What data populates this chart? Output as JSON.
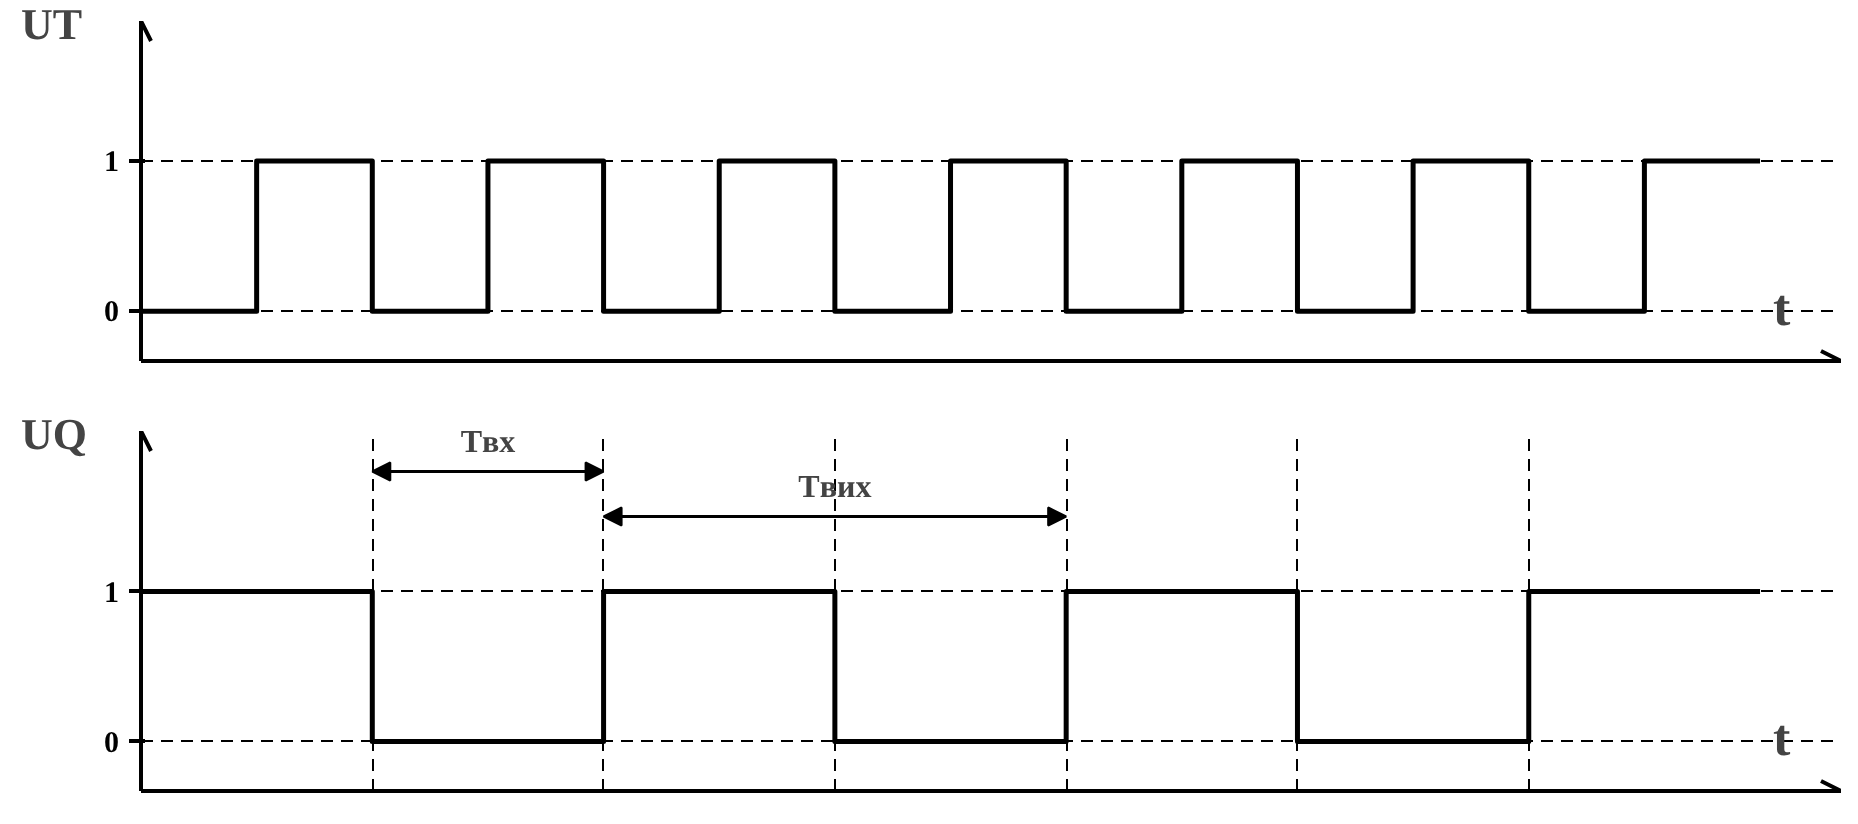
{
  "chart_data": [
    {
      "type": "step",
      "ylabel": "UT",
      "xlabel": "t",
      "categories": [
        null,
        null,
        null,
        null,
        null,
        null,
        null,
        null,
        null,
        null,
        null,
        null,
        null,
        null,
        null
      ],
      "ylim": [
        -0.33,
        1.93
      ],
      "yticks": [
        0,
        1
      ],
      "tick_labels": "y",
      "line_style": "solid",
      "grid": "y",
      "series": [
        {
          "color": "#000000",
          "values": [
            0,
            1,
            0,
            1,
            0,
            1,
            0,
            1,
            0,
            1,
            0,
            1,
            0,
            1,
            1
          ]
        }
      ]
    },
    {
      "type": "step",
      "ylabel": "UQ",
      "xlabel": "t",
      "categories": [
        null,
        null,
        null,
        null,
        null,
        null,
        null,
        null,
        null,
        null,
        null,
        null,
        null,
        null,
        null
      ],
      "ylim": [
        -0.33,
        2.07
      ],
      "yticks": [
        0,
        1
      ],
      "tick_labels": "y",
      "line_style": "solid",
      "grid": true,
      "series": [
        {
          "color": "#000000",
          "values": [
            1,
            1,
            0,
            0,
            1,
            1,
            0,
            0,
            1,
            1,
            0,
            0,
            1,
            1,
            1
          ]
        }
      ],
      "annotations": [
        "Tвх",
        "Tвих"
      ]
    }
  ]
}
